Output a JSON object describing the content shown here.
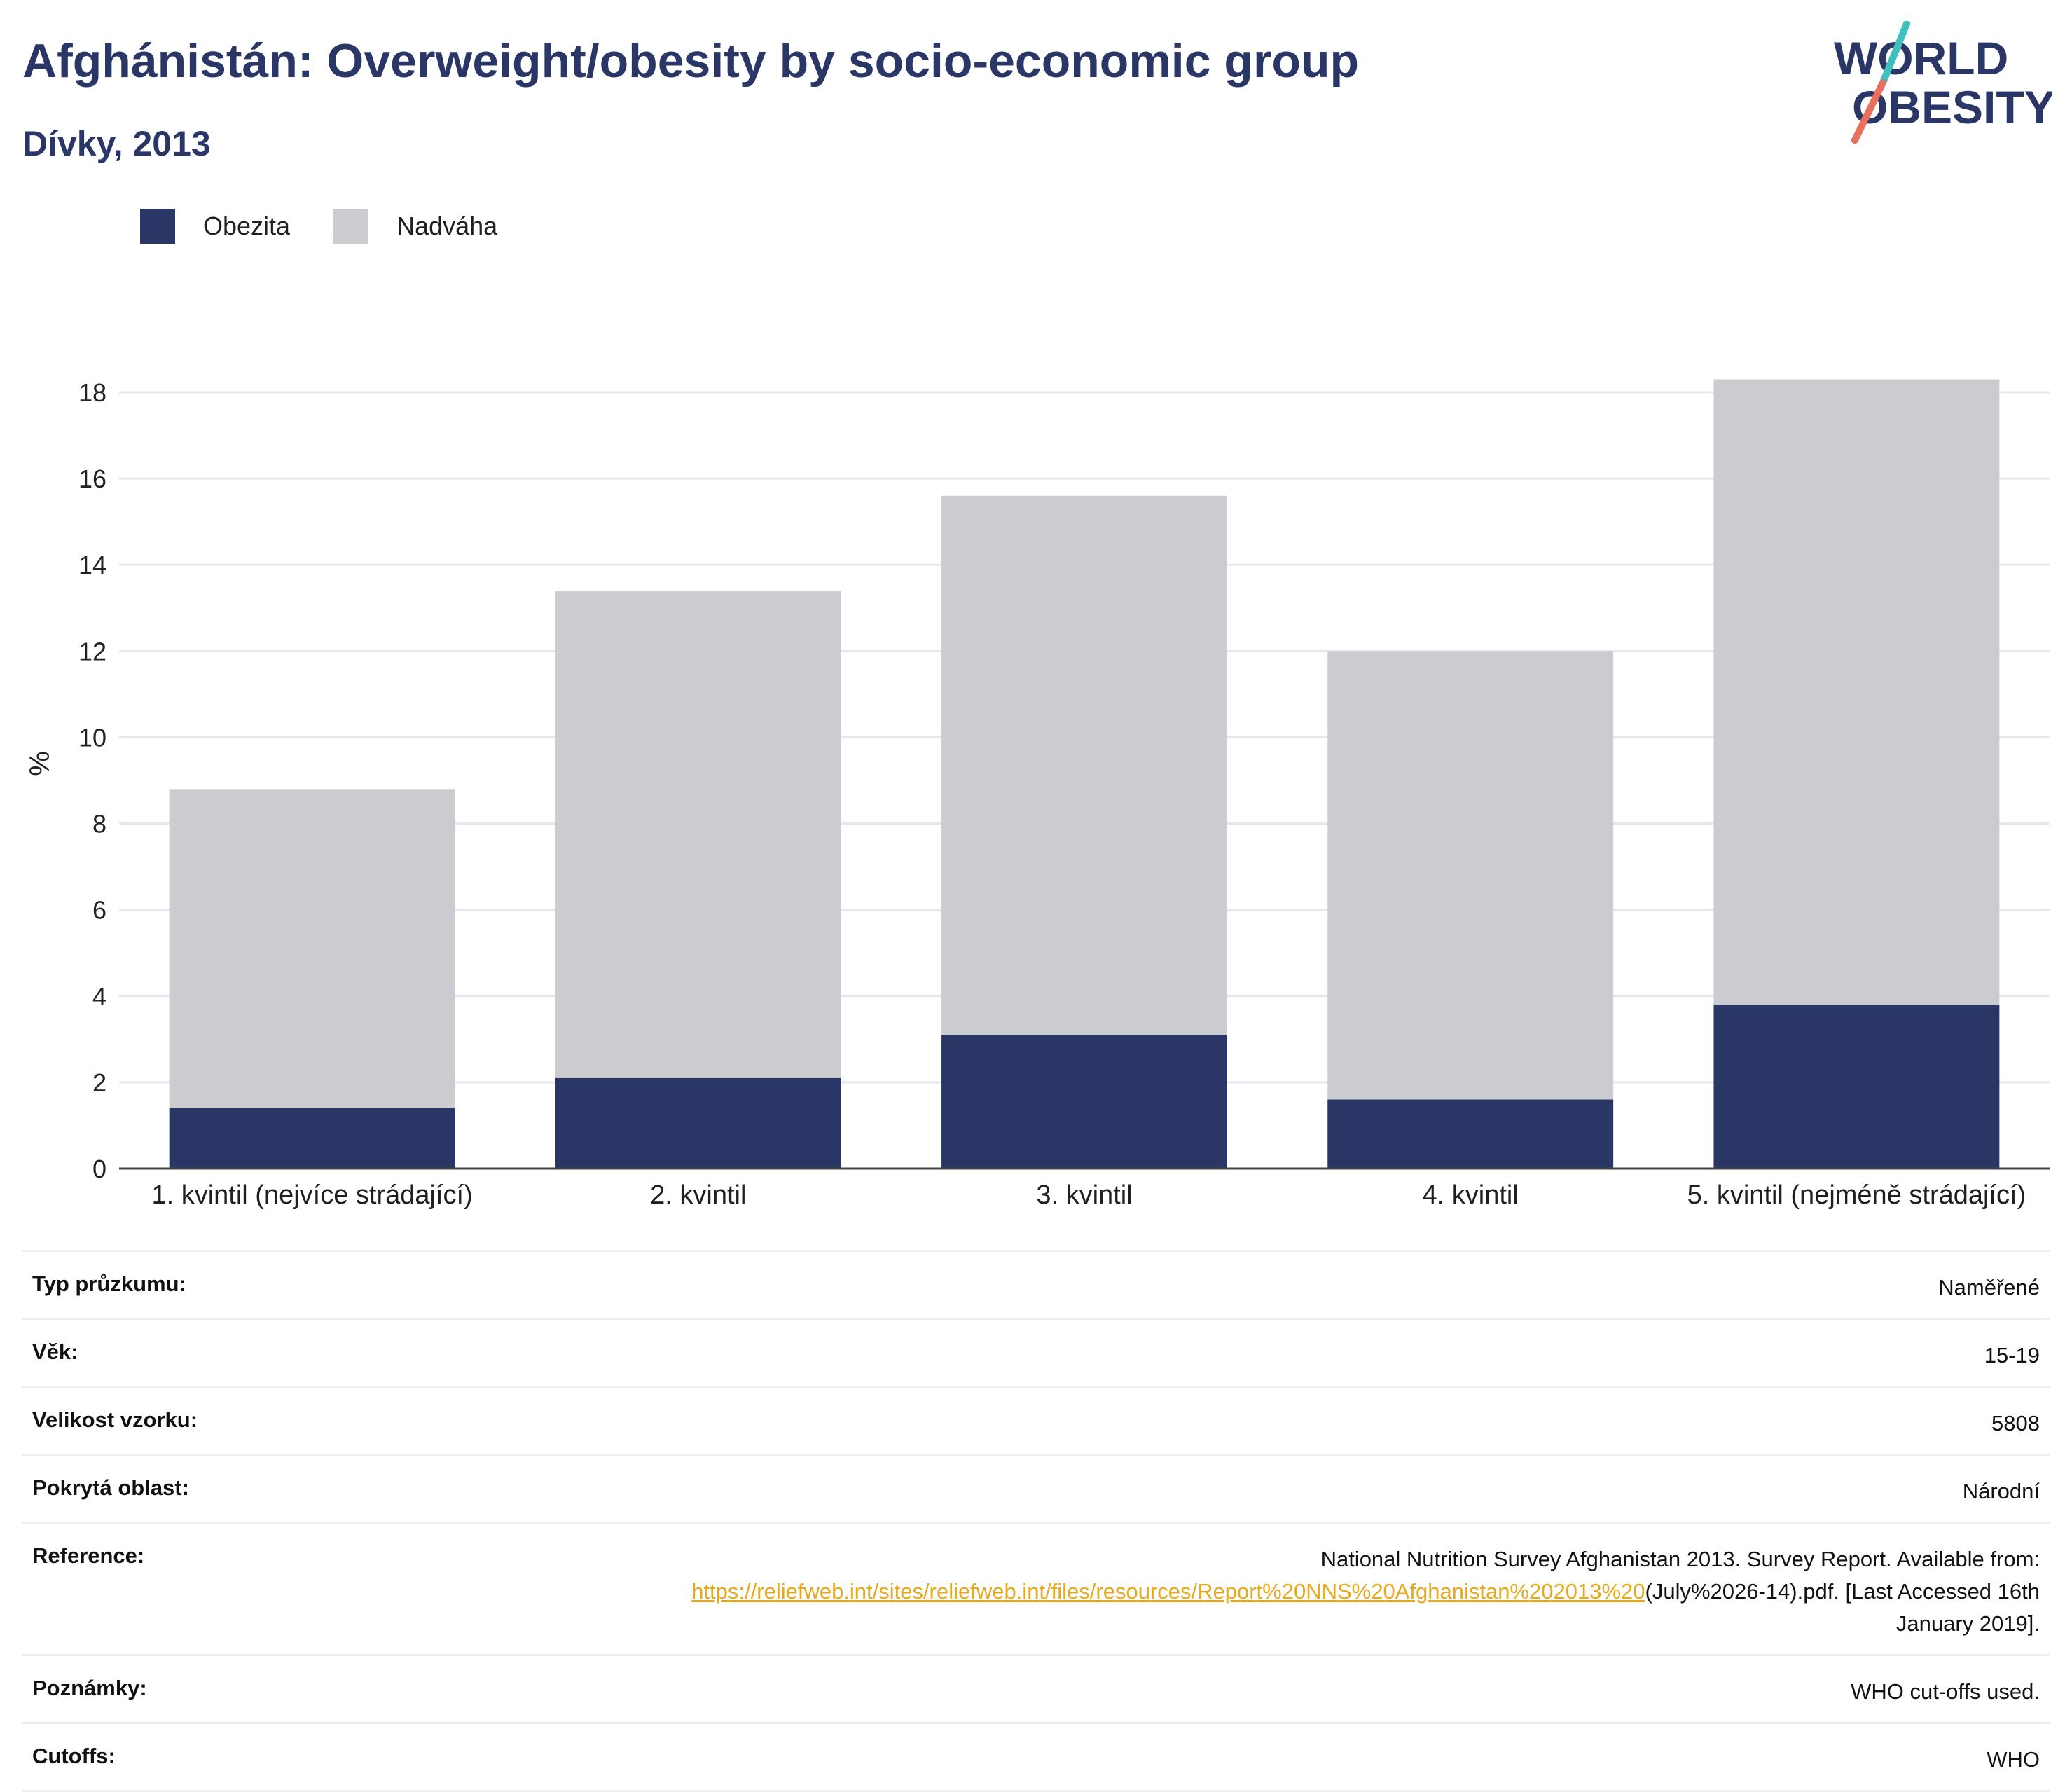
{
  "header": {
    "title": "Afghánistán: Overweight/obesity by socio-economic group",
    "subtitle": "Dívky, 2013"
  },
  "logo": {
    "line1": "WORLD",
    "line2": "OBESITY"
  },
  "colors": {
    "obesity": "#2a3665",
    "overweight": "#cacccf",
    "title": "#2a3665",
    "link": "#e6a91d",
    "logo_teal": "#3fbfbf",
    "logo_coral": "#e8705e"
  },
  "chart_data": {
    "type": "bar",
    "stacked": true,
    "categories": [
      "1. kvintil (nejvíce strádající)",
      "2. kvintil",
      "3. kvintil",
      "4. kvintil",
      "5. kvintil (nejméně strádající)"
    ],
    "series": [
      {
        "name": "Obezita",
        "values": [
          1.4,
          2.1,
          3.1,
          1.6,
          3.8
        ]
      },
      {
        "name": "Nadváha",
        "values": [
          7.4,
          11.3,
          12.5,
          10.4,
          14.5
        ]
      }
    ],
    "ylabel": "%",
    "ylim": [
      0,
      18
    ],
    "yticks": [
      0,
      2,
      4,
      6,
      8,
      10,
      12,
      14,
      16,
      18
    ],
    "grid": true,
    "legend": "top-left"
  },
  "meta": {
    "survey_type": {
      "label": "Typ průzkumu:",
      "value": "Naměřené"
    },
    "age": {
      "label": "Věk:",
      "value": "15-19"
    },
    "sample_size": {
      "label": "Velikost vzorku:",
      "value": "5808"
    },
    "coverage": {
      "label": "Pokrytá oblast:",
      "value": "Národní"
    },
    "reference": {
      "label": "Reference:",
      "text_before": "National Nutrition Survey Afghanistan 2013. Survey Report. Available from:",
      "link": "https://reliefweb.int/sites/reliefweb.int/files/resources/Report%20NNS%20Afghanistan%202013%20",
      "text_after": "(July%2026-14).pdf. [Last Accessed 16th January 2019]."
    },
    "notes": {
      "label": "Poznámky:",
      "value": "WHO cut-offs used."
    },
    "cutoffs": {
      "label": "Cutoffs:",
      "value": "WHO"
    }
  }
}
